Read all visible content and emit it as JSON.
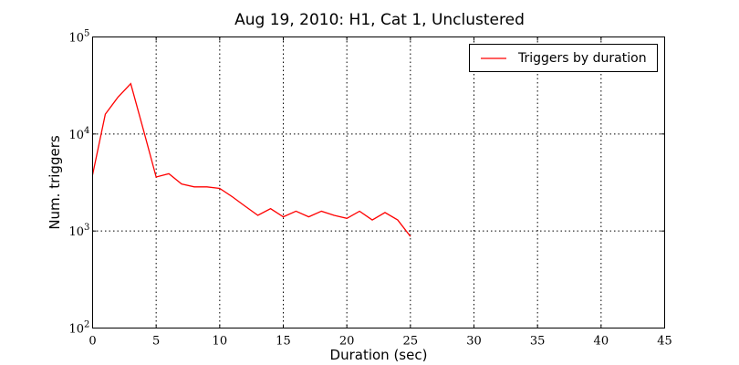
{
  "chart_data": {
    "type": "line",
    "title": "Aug 19, 2010: H1, Cat 1, Unclustered",
    "xlabel": "Duration (sec)",
    "ylabel": "Num. triggers",
    "xlim": [
      0,
      45
    ],
    "ylim": [
      100,
      100000
    ],
    "yscale": "log",
    "grid": true,
    "legend_position": "top-right",
    "x_ticks": [
      0,
      5,
      10,
      15,
      20,
      25,
      30,
      35,
      40,
      45
    ],
    "y_ticks": [
      {
        "value": 100,
        "base": "10",
        "exp": "2"
      },
      {
        "value": 1000,
        "base": "10",
        "exp": "3"
      },
      {
        "value": 10000,
        "base": "10",
        "exp": "4"
      },
      {
        "value": 100000,
        "base": "10",
        "exp": "5"
      }
    ],
    "series": [
      {
        "name": "Triggers by duration",
        "color": "#ff0000",
        "x": [
          0,
          1,
          2,
          3,
          4,
          5,
          6,
          7,
          8,
          9,
          10,
          11,
          12,
          13,
          14,
          15,
          16,
          17,
          18,
          19,
          20,
          21,
          22,
          23,
          24,
          25
        ],
        "y": [
          3800,
          16000,
          24000,
          33000,
          11000,
          3600,
          3900,
          3050,
          2850,
          2850,
          2750,
          2250,
          1800,
          1450,
          1700,
          1400,
          1600,
          1400,
          1600,
          1450,
          1350,
          1600,
          1300,
          1550,
          1300,
          880
        ]
      }
    ]
  }
}
